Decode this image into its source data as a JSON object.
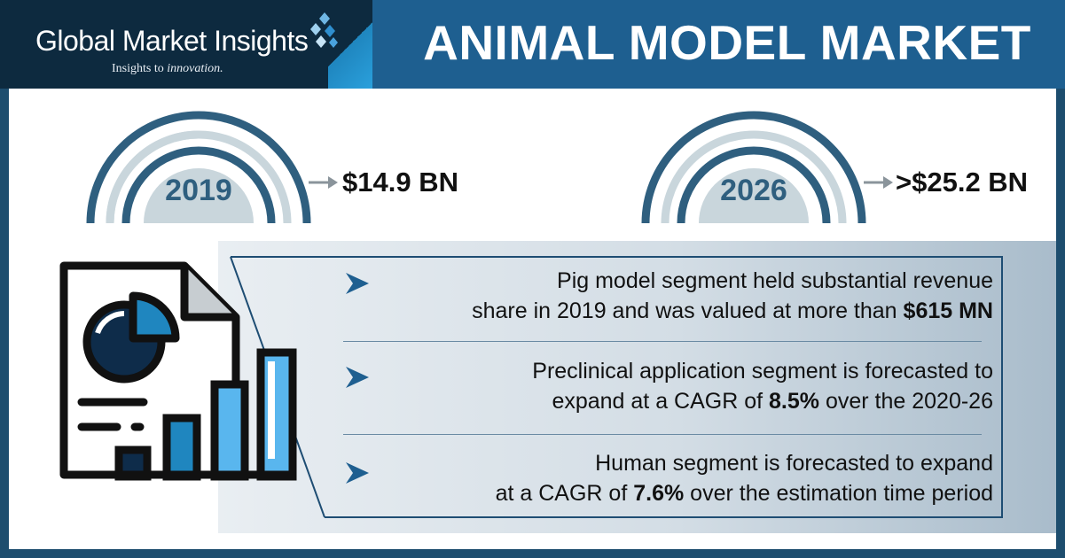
{
  "brand": {
    "name": "Global Market Insights",
    "tagline_prefix": "Insights to ",
    "tagline_emphasis": "innovation."
  },
  "title": "ANIMAL MODEL MARKET",
  "gauges": [
    {
      "year": "2019",
      "value": "$14.9 BN"
    },
    {
      "year": "2026",
      "value": ">$25.2 BN"
    }
  ],
  "facts": [
    {
      "line1": "Pig model segment held substantial revenue",
      "line2_text": "share in 2019 and was valued at more than ",
      "line2_bold": "$615 MN",
      "line2_after": ""
    },
    {
      "line1": "Preclinical application segment is forecasted to",
      "line2_text": "expand at a CAGR of ",
      "line2_bold": "8.5%",
      "line2_after": " over the 2020-26"
    },
    {
      "line1": "Human segment is forecasted to expand",
      "line2_text": "at a CAGR of ",
      "line2_bold": "7.6%",
      "line2_after": " over the estimation time period"
    }
  ],
  "colors": {
    "dark_navy": "#0d2a3f",
    "title_blue": "#1e5f90",
    "gauge_dark": "#2f5f7f",
    "gauge_light": "#c9d6dc",
    "accent_blue": "#1f86bf"
  },
  "icons": [
    "logo-diamonds-icon",
    "report-chart-icon",
    "chevron-bullet-icon",
    "arrow-right-icon"
  ]
}
